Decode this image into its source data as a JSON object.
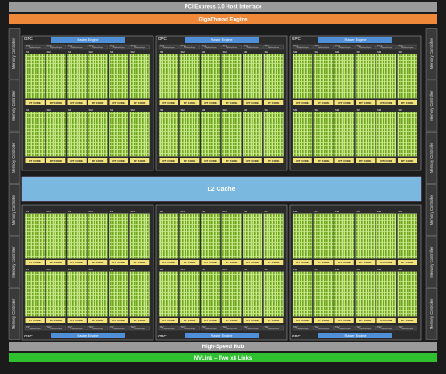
{
  "header": {
    "title": "PCI Express 3.0 Host Interface"
  },
  "gigathread": "GigaThread Engine",
  "memory_controller": "Memory Controller",
  "gpc": {
    "label": "GPC",
    "raster_engine": "Raster Engine",
    "tpc": "TPC",
    "polymorph_engine": "PolyMorph Engine",
    "sm": "SM",
    "rt_core": "RT CORE"
  },
  "l2_cache": "L2 Cache",
  "hub": "High-Speed Hub",
  "nvlink": "NVLink – Two x8 Links"
}
